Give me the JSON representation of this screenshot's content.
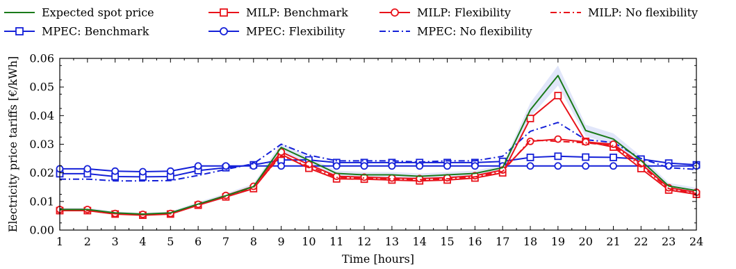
{
  "chart_data": {
    "type": "line",
    "xlabel": "Time [hours]",
    "ylabel": "Electricity price tariffs [€/kWh]",
    "xlim": [
      1,
      24
    ],
    "ylim": [
      0,
      0.06
    ],
    "grid": false,
    "legend_placement": "top",
    "x": [
      1,
      2,
      3,
      4,
      5,
      6,
      7,
      8,
      9,
      10,
      11,
      12,
      13,
      14,
      15,
      16,
      17,
      18,
      19,
      20,
      21,
      22,
      23,
      24
    ],
    "x_ticks": [
      "1",
      "2",
      "3",
      "4",
      "5",
      "6",
      "7",
      "8",
      "9",
      "10",
      "11",
      "12",
      "13",
      "14",
      "15",
      "16",
      "17",
      "18",
      "19",
      "20",
      "21",
      "22",
      "23",
      "24"
    ],
    "y_ticks": [
      "0.00",
      "0.01",
      "0.02",
      "0.03",
      "0.04",
      "0.05",
      "0.06"
    ],
    "y_tick_values": [
      0,
      0.01,
      0.02,
      0.03,
      0.04,
      0.05,
      0.06
    ],
    "band": {
      "color": "#c8d2f5",
      "upper": [
        0.0078,
        0.0078,
        0.0065,
        0.006,
        0.0065,
        0.0098,
        0.0128,
        0.0162,
        0.0305,
        0.0255,
        0.0208,
        0.0203,
        0.0203,
        0.0198,
        0.0203,
        0.0208,
        0.0228,
        0.0445,
        0.0575,
        0.0368,
        0.0338,
        0.0258,
        0.0165,
        0.0148
      ],
      "lower": [
        0.0066,
        0.0066,
        0.0054,
        0.0051,
        0.0054,
        0.0084,
        0.0112,
        0.0142,
        0.0273,
        0.0233,
        0.0188,
        0.0183,
        0.0183,
        0.0178,
        0.0183,
        0.0188,
        0.0208,
        0.0395,
        0.0505,
        0.0328,
        0.0298,
        0.0228,
        0.0143,
        0.0128
      ]
    },
    "series": [
      {
        "name": "Expected spot price",
        "color": "#1a7a1a",
        "dash": "solid",
        "marker": "none",
        "values": [
          0.0072,
          0.0072,
          0.006,
          0.0056,
          0.006,
          0.0091,
          0.012,
          0.0152,
          0.0289,
          0.0244,
          0.0198,
          0.0193,
          0.0193,
          0.0188,
          0.0193,
          0.0198,
          0.0218,
          0.042,
          0.054,
          0.0348,
          0.0318,
          0.0243,
          0.0154,
          0.0138
        ]
      },
      {
        "name": "MILP: Benchmark",
        "color": "#e8121a",
        "dash": "solid",
        "marker": "square",
        "values": [
          0.0068,
          0.0068,
          0.0056,
          0.0052,
          0.0056,
          0.0087,
          0.0116,
          0.0145,
          0.0265,
          0.0216,
          0.0179,
          0.0178,
          0.0175,
          0.0172,
          0.0175,
          0.0182,
          0.02,
          0.039,
          0.047,
          0.031,
          0.029,
          0.0215,
          0.014,
          0.0125
        ]
      },
      {
        "name": "MILP: Flexibility",
        "color": "#e8121a",
        "dash": "solid",
        "marker": "circle",
        "values": [
          0.0072,
          0.0072,
          0.0058,
          0.0055,
          0.0058,
          0.009,
          0.0121,
          0.0153,
          0.0273,
          0.0229,
          0.0188,
          0.0185,
          0.0182,
          0.018,
          0.0183,
          0.019,
          0.021,
          0.031,
          0.0318,
          0.0308,
          0.03,
          0.0232,
          0.0148,
          0.0132
        ]
      },
      {
        "name": "MILP: No flexibility",
        "color": "#e8121a",
        "dash": "dashdot",
        "marker": "none",
        "values": [
          0.007,
          0.0068,
          0.0057,
          0.0053,
          0.0057,
          0.0088,
          0.0118,
          0.0149,
          0.026,
          0.0222,
          0.0184,
          0.0182,
          0.0179,
          0.0176,
          0.0179,
          0.0186,
          0.0205,
          0.0315,
          0.031,
          0.0305,
          0.0295,
          0.0225,
          0.0145,
          0.0128
        ]
      },
      {
        "name": "MPEC: Benchmark",
        "color": "#1420d8",
        "dash": "solid",
        "marker": "square",
        "values": [
          0.0197,
          0.0197,
          0.0187,
          0.0186,
          0.0187,
          0.0208,
          0.0218,
          0.0228,
          0.0245,
          0.0245,
          0.0236,
          0.0236,
          0.0236,
          0.0236,
          0.0236,
          0.0236,
          0.024,
          0.0254,
          0.0258,
          0.0255,
          0.0254,
          0.0248,
          0.0234,
          0.0228
        ]
      },
      {
        "name": "MPEC: Flexibility",
        "color": "#1420d8",
        "dash": "solid",
        "marker": "circle",
        "values": [
          0.0214,
          0.0214,
          0.0206,
          0.0204,
          0.0206,
          0.0224,
          0.0224,
          0.0224,
          0.0224,
          0.0224,
          0.0224,
          0.0224,
          0.0224,
          0.0224,
          0.0224,
          0.0224,
          0.0224,
          0.0224,
          0.0224,
          0.0224,
          0.0224,
          0.0224,
          0.0224,
          0.0224
        ]
      },
      {
        "name": "MPEC: No flexibility",
        "color": "#1420d8",
        "dash": "dashdot",
        "marker": "none",
        "values": [
          0.0178,
          0.0178,
          0.0172,
          0.0172,
          0.0173,
          0.0191,
          0.0212,
          0.0232,
          0.03,
          0.0262,
          0.0242,
          0.0242,
          0.0242,
          0.0238,
          0.0242,
          0.0242,
          0.0258,
          0.0345,
          0.0376,
          0.0316,
          0.0306,
          0.025,
          0.0218,
          0.0212
        ]
      }
    ],
    "legend_order": [
      0,
      1,
      2,
      3,
      4,
      5,
      6
    ]
  }
}
